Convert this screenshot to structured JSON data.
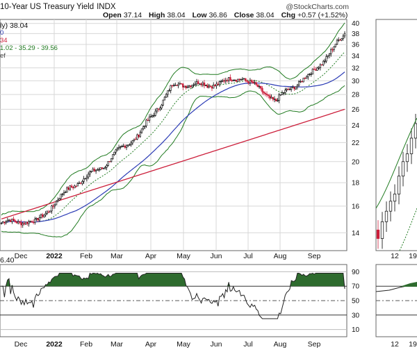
{
  "header": {
    "title": "10-Year US Treasury Yield",
    "exchange": "INDX",
    "copyright": "@StockCharts.com",
    "ohlc": {
      "open_label": "Open",
      "open": "37.14",
      "high_label": "High",
      "high": "38.04",
      "low_label": "Low",
      "low": "36.86",
      "close_label": "Close",
      "close": "38.04",
      "chg_label": "Chg",
      "chg": "+0.57 (+1.52%)"
    }
  },
  "legend": {
    "line1": "ly) 38.04",
    "line2": "0",
    "line3": "34",
    "line4": "1.02 - 35.29 - 39.56",
    "line5": "ef",
    "rsi": "6.40"
  },
  "chart_data": [
    {
      "type": "candlestick",
      "name": "main-price-panel",
      "x_ticks": [
        "Dec",
        "2022",
        "Feb",
        "Mar",
        "Apr",
        "May",
        "Jun",
        "Jul",
        "Aug",
        "Sep"
      ],
      "y_ticks": [
        14,
        16,
        18,
        20,
        22,
        24,
        26,
        28,
        30,
        32,
        34,
        36,
        38,
        40
      ],
      "ylim": [
        12.8,
        40.8
      ],
      "y_scale": "log",
      "series": [
        {
          "name": "price",
          "months": [
            [
              "Nov",
              14.7
            ],
            [
              "Dec",
              14.6
            ],
            [
              "2022",
              17.8
            ],
            [
              "Feb",
              19.4
            ],
            [
              "Mar",
              23.0
            ],
            [
              "Apr",
              29.4
            ],
            [
              "May",
              29.0
            ],
            [
              "Jun",
              31.0
            ],
            [
              "Jul",
              26.8
            ],
            [
              "Aug",
              31.0
            ],
            [
              "Sep",
              38.04
            ]
          ]
        },
        {
          "name": "moving-average-short",
          "color": "#2b3bb5"
        },
        {
          "name": "moving-average-long",
          "color": "#cc1f3b"
        }
      ],
      "colors": {
        "up": "#000000",
        "down": "#cc1f3b",
        "bands": "#1f7a1f"
      }
    },
    {
      "type": "line",
      "name": "rsi-panel",
      "y_ticks": [
        10,
        30,
        50,
        70,
        90
      ],
      "ylim": [
        0,
        100
      ],
      "last": 66.4,
      "color": "#222222",
      "fill_color": "#2e6b2e"
    },
    {
      "type": "candlestick",
      "name": "right-weekly-panel",
      "x_ticks": [
        "12",
        "19"
      ]
    }
  ]
}
